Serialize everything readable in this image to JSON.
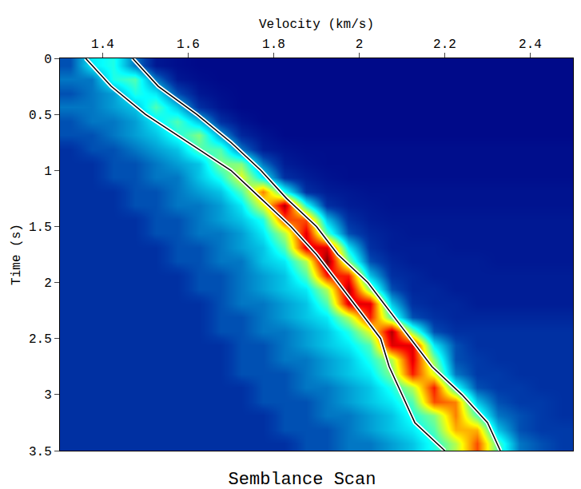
{
  "chart_data": {
    "type": "heatmap",
    "title": "Semblance Scan",
    "x_label": "Velocity (km/s)",
    "y_label": "Time (s)",
    "xlim": [
      1.3,
      2.5
    ],
    "ylim": [
      3.5,
      0
    ],
    "xticks": [
      1.4,
      1.6,
      1.8,
      2,
      2.2,
      2.4
    ],
    "yticks": [
      0,
      0.5,
      1,
      1.5,
      2,
      2.5,
      3,
      3.5
    ],
    "zlim": [
      0,
      1
    ],
    "x": [
      1.325,
      1.375,
      1.425,
      1.475,
      1.525,
      1.575,
      1.625,
      1.675,
      1.725,
      1.775,
      1.825,
      1.875,
      1.925,
      1.975,
      2.025,
      2.075,
      2.125,
      2.175,
      2.225,
      2.275,
      2.325,
      2.375,
      2.425,
      2.475
    ],
    "y": [
      0.0625,
      0.1875,
      0.3125,
      0.4375,
      0.5625,
      0.6875,
      0.8125,
      0.9375,
      1.0625,
      1.1875,
      1.3125,
      1.4375,
      1.5625,
      1.6875,
      1.8125,
      1.9375,
      2.0625,
      2.1875,
      2.3125,
      2.4375,
      2.5625,
      2.6875,
      2.8125,
      2.9375,
      3.0625,
      3.1875,
      3.3125,
      3.4375
    ],
    "cells": [
      [
        0.15,
        0.35,
        0.4,
        0.2,
        0.05,
        0.03,
        0.02,
        0.02,
        0.02,
        0.02,
        0.02,
        0.02,
        0.02,
        0.02,
        0.02,
        0.02,
        0.02,
        0.02,
        0.02,
        0.02,
        0.02,
        0.02,
        0.02,
        0.02
      ],
      [
        0.2,
        0.2,
        0.4,
        0.45,
        0.2,
        0.05,
        0.03,
        0.02,
        0.02,
        0.02,
        0.02,
        0.02,
        0.02,
        0.02,
        0.02,
        0.02,
        0.02,
        0.02,
        0.02,
        0.02,
        0.02,
        0.02,
        0.02,
        0.02
      ],
      [
        0.15,
        0.2,
        0.25,
        0.4,
        0.35,
        0.15,
        0.05,
        0.03,
        0.02,
        0.02,
        0.02,
        0.02,
        0.02,
        0.02,
        0.02,
        0.02,
        0.02,
        0.02,
        0.02,
        0.02,
        0.02,
        0.02,
        0.02,
        0.02
      ],
      [
        0.2,
        0.2,
        0.25,
        0.3,
        0.45,
        0.3,
        0.1,
        0.04,
        0.02,
        0.02,
        0.02,
        0.02,
        0.02,
        0.02,
        0.02,
        0.02,
        0.02,
        0.02,
        0.02,
        0.02,
        0.02,
        0.02,
        0.02,
        0.02
      ],
      [
        0.15,
        0.2,
        0.2,
        0.25,
        0.35,
        0.45,
        0.3,
        0.1,
        0.04,
        0.02,
        0.02,
        0.02,
        0.02,
        0.02,
        0.02,
        0.02,
        0.02,
        0.02,
        0.02,
        0.02,
        0.02,
        0.02,
        0.02,
        0.02
      ],
      [
        0.15,
        0.15,
        0.2,
        0.25,
        0.3,
        0.4,
        0.5,
        0.25,
        0.08,
        0.04,
        0.02,
        0.02,
        0.02,
        0.02,
        0.02,
        0.02,
        0.02,
        0.02,
        0.02,
        0.02,
        0.02,
        0.02,
        0.02,
        0.02
      ],
      [
        0.1,
        0.15,
        0.15,
        0.2,
        0.25,
        0.3,
        0.45,
        0.45,
        0.2,
        0.06,
        0.04,
        0.03,
        0.03,
        0.03,
        0.03,
        0.03,
        0.03,
        0.03,
        0.03,
        0.03,
        0.03,
        0.03,
        0.03,
        0.03
      ],
      [
        0.1,
        0.1,
        0.15,
        0.15,
        0.2,
        0.25,
        0.3,
        0.5,
        0.5,
        0.2,
        0.06,
        0.04,
        0.03,
        0.03,
        0.03,
        0.03,
        0.03,
        0.03,
        0.03,
        0.03,
        0.03,
        0.03,
        0.03,
        0.03
      ],
      [
        0.1,
        0.1,
        0.15,
        0.15,
        0.2,
        0.2,
        0.3,
        0.4,
        0.6,
        0.35,
        0.1,
        0.06,
        0.04,
        0.03,
        0.03,
        0.03,
        0.03,
        0.03,
        0.03,
        0.03,
        0.03,
        0.03,
        0.03,
        0.03
      ],
      [
        0.1,
        0.1,
        0.1,
        0.15,
        0.15,
        0.2,
        0.25,
        0.3,
        0.45,
        0.75,
        0.4,
        0.1,
        0.06,
        0.05,
        0.04,
        0.04,
        0.04,
        0.04,
        0.04,
        0.04,
        0.04,
        0.04,
        0.04,
        0.04
      ],
      [
        0.1,
        0.1,
        0.1,
        0.15,
        0.15,
        0.2,
        0.2,
        0.25,
        0.35,
        0.6,
        0.95,
        0.4,
        0.1,
        0.06,
        0.05,
        0.04,
        0.04,
        0.04,
        0.04,
        0.04,
        0.04,
        0.04,
        0.04,
        0.04
      ],
      [
        0.1,
        0.1,
        0.1,
        0.1,
        0.15,
        0.15,
        0.2,
        0.25,
        0.3,
        0.4,
        0.8,
        0.8,
        0.3,
        0.1,
        0.06,
        0.05,
        0.05,
        0.05,
        0.05,
        0.05,
        0.05,
        0.05,
        0.05,
        0.05
      ],
      [
        0.1,
        0.1,
        0.1,
        0.1,
        0.15,
        0.15,
        0.2,
        0.2,
        0.25,
        0.35,
        0.55,
        0.9,
        0.45,
        0.15,
        0.08,
        0.06,
        0.05,
        0.05,
        0.05,
        0.05,
        0.05,
        0.05,
        0.05,
        0.05
      ],
      [
        0.1,
        0.1,
        0.1,
        0.1,
        0.1,
        0.15,
        0.15,
        0.2,
        0.25,
        0.3,
        0.45,
        0.9,
        0.9,
        0.35,
        0.1,
        0.06,
        0.06,
        0.06,
        0.05,
        0.05,
        0.05,
        0.05,
        0.05,
        0.05
      ],
      [
        0.1,
        0.1,
        0.1,
        0.1,
        0.1,
        0.15,
        0.15,
        0.2,
        0.2,
        0.3,
        0.35,
        0.55,
        1.0,
        0.5,
        0.15,
        0.08,
        0.06,
        0.06,
        0.06,
        0.06,
        0.05,
        0.05,
        0.05,
        0.05
      ],
      [
        0.1,
        0.1,
        0.1,
        0.1,
        0.1,
        0.1,
        0.15,
        0.15,
        0.2,
        0.25,
        0.3,
        0.45,
        0.85,
        0.85,
        0.3,
        0.1,
        0.08,
        0.06,
        0.06,
        0.06,
        0.06,
        0.06,
        0.06,
        0.06
      ],
      [
        0.1,
        0.1,
        0.1,
        0.1,
        0.1,
        0.1,
        0.15,
        0.15,
        0.2,
        0.25,
        0.3,
        0.35,
        0.55,
        0.95,
        0.5,
        0.15,
        0.08,
        0.08,
        0.06,
        0.06,
        0.06,
        0.06,
        0.06,
        0.06
      ],
      [
        0.1,
        0.1,
        0.1,
        0.1,
        0.1,
        0.1,
        0.1,
        0.15,
        0.2,
        0.2,
        0.25,
        0.3,
        0.45,
        0.9,
        0.9,
        0.3,
        0.1,
        0.08,
        0.08,
        0.06,
        0.06,
        0.06,
        0.06,
        0.06
      ],
      [
        0.1,
        0.1,
        0.1,
        0.1,
        0.1,
        0.1,
        0.1,
        0.15,
        0.15,
        0.2,
        0.25,
        0.3,
        0.35,
        0.55,
        0.85,
        0.45,
        0.15,
        0.1,
        0.08,
        0.08,
        0.08,
        0.08,
        0.08,
        0.08
      ],
      [
        0.1,
        0.1,
        0.1,
        0.1,
        0.1,
        0.1,
        0.1,
        0.15,
        0.15,
        0.2,
        0.2,
        0.25,
        0.3,
        0.4,
        0.6,
        0.95,
        0.5,
        0.15,
        0.1,
        0.1,
        0.1,
        0.1,
        0.1,
        0.1
      ],
      [
        0.1,
        0.1,
        0.1,
        0.1,
        0.1,
        0.1,
        0.1,
        0.1,
        0.15,
        0.15,
        0.2,
        0.25,
        0.3,
        0.35,
        0.45,
        0.9,
        0.9,
        0.35,
        0.15,
        0.1,
        0.1,
        0.1,
        0.1,
        0.1
      ],
      [
        0.1,
        0.1,
        0.1,
        0.1,
        0.1,
        0.1,
        0.1,
        0.1,
        0.15,
        0.15,
        0.2,
        0.2,
        0.25,
        0.3,
        0.4,
        0.55,
        0.9,
        0.5,
        0.15,
        0.12,
        0.1,
        0.1,
        0.1,
        0.1
      ],
      [
        0.1,
        0.1,
        0.1,
        0.1,
        0.1,
        0.1,
        0.1,
        0.1,
        0.15,
        0.15,
        0.15,
        0.2,
        0.25,
        0.3,
        0.35,
        0.5,
        0.85,
        0.6,
        0.2,
        0.12,
        0.12,
        0.1,
        0.1,
        0.1
      ],
      [
        0.1,
        0.1,
        0.1,
        0.1,
        0.1,
        0.1,
        0.1,
        0.1,
        0.1,
        0.15,
        0.15,
        0.2,
        0.2,
        0.25,
        0.3,
        0.4,
        0.55,
        0.85,
        0.4,
        0.15,
        0.12,
        0.12,
        0.1,
        0.1
      ],
      [
        0.1,
        0.1,
        0.1,
        0.1,
        0.1,
        0.1,
        0.1,
        0.1,
        0.1,
        0.15,
        0.15,
        0.15,
        0.2,
        0.25,
        0.3,
        0.35,
        0.45,
        0.8,
        0.75,
        0.3,
        0.15,
        0.12,
        0.12,
        0.1
      ],
      [
        0.1,
        0.1,
        0.1,
        0.1,
        0.1,
        0.1,
        0.1,
        0.1,
        0.1,
        0.1,
        0.15,
        0.15,
        0.2,
        0.2,
        0.25,
        0.3,
        0.4,
        0.5,
        0.75,
        0.45,
        0.2,
        0.15,
        0.12,
        0.1
      ],
      [
        0.1,
        0.1,
        0.1,
        0.1,
        0.1,
        0.1,
        0.1,
        0.1,
        0.1,
        0.1,
        0.15,
        0.15,
        0.15,
        0.2,
        0.25,
        0.3,
        0.35,
        0.45,
        0.7,
        0.7,
        0.3,
        0.15,
        0.12,
        0.12
      ],
      [
        0.1,
        0.1,
        0.1,
        0.1,
        0.1,
        0.1,
        0.1,
        0.1,
        0.1,
        0.1,
        0.1,
        0.15,
        0.15,
        0.2,
        0.2,
        0.25,
        0.3,
        0.4,
        0.55,
        0.8,
        0.45,
        0.2,
        0.15,
        0.12
      ]
    ],
    "series": [
      {
        "type": "line",
        "color": "#ffffff",
        "time": [
          0,
          0.25,
          0.5,
          0.75,
          1.0,
          1.25,
          1.5,
          1.75,
          2.0,
          2.25,
          2.5,
          2.75,
          3.0,
          3.25,
          3.5
        ],
        "velocity": [
          1.36,
          1.42,
          1.5,
          1.6,
          1.7,
          1.77,
          1.84,
          1.9,
          1.95,
          2.0,
          2.05,
          2.07,
          2.1,
          2.13,
          2.2
        ]
      },
      {
        "type": "line",
        "color": "#ffffff",
        "time": [
          0,
          0.25,
          0.5,
          0.75,
          1.0,
          1.25,
          1.5,
          1.75,
          2.0,
          2.25,
          2.5,
          2.75,
          3.0,
          3.25,
          3.5
        ],
        "velocity": [
          1.47,
          1.53,
          1.62,
          1.7,
          1.77,
          1.83,
          1.9,
          1.95,
          2.02,
          2.07,
          2.12,
          2.17,
          2.24,
          2.3,
          2.33
        ]
      }
    ]
  }
}
